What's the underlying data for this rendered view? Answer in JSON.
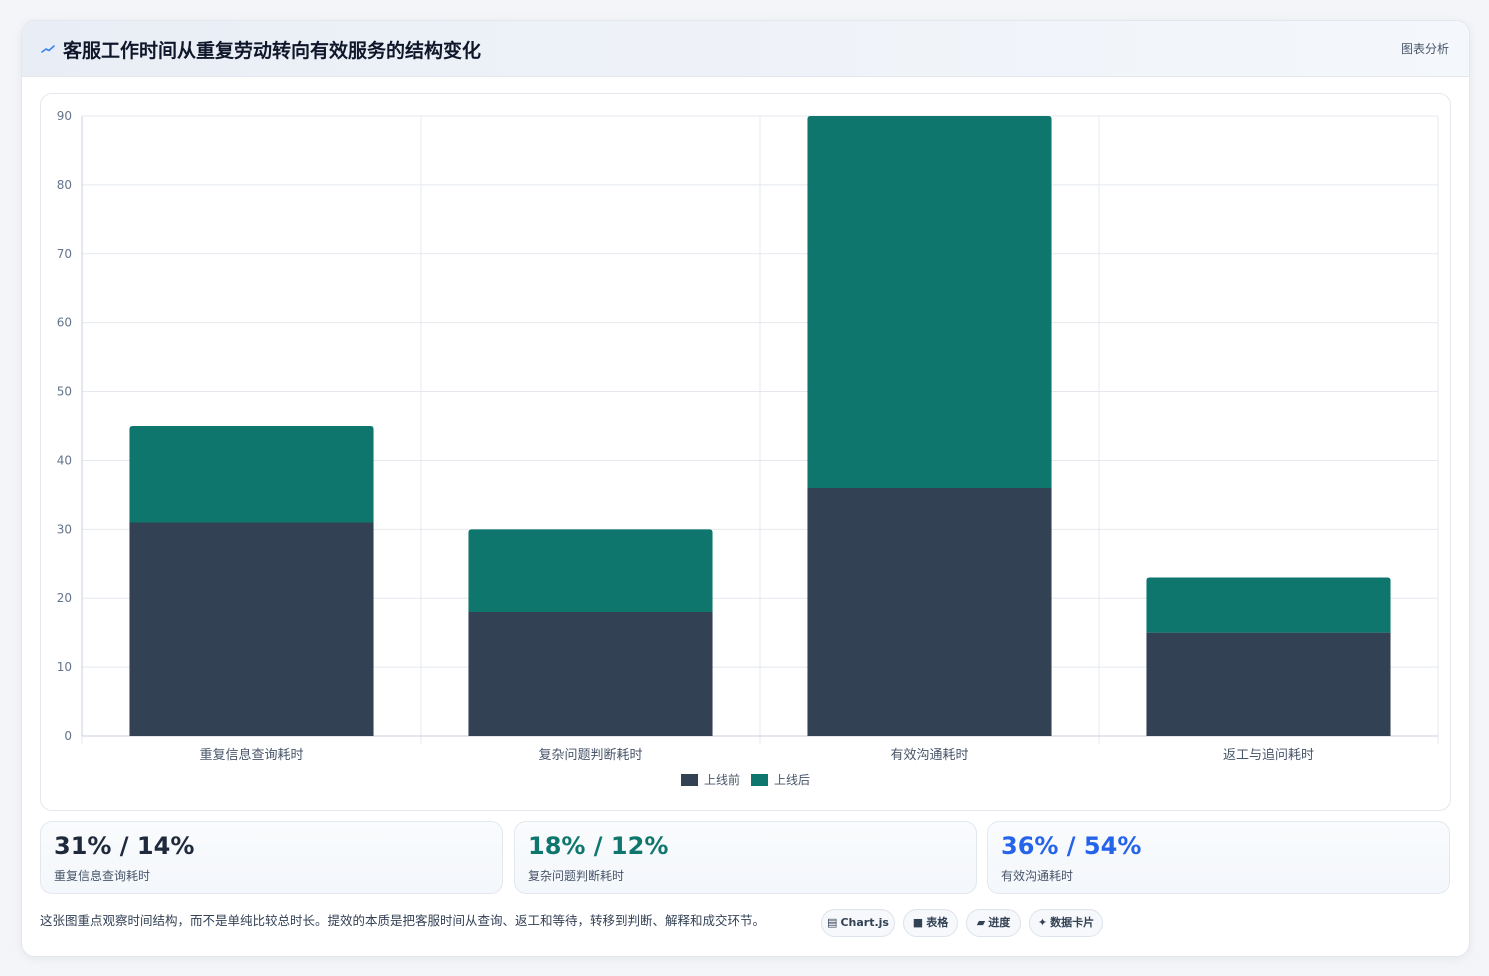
{
  "header": {
    "title": "客服工作时间从重复劳动转向有效服务的结构变化",
    "tag": "图表分析"
  },
  "chart_data": {
    "type": "bar",
    "stacked": true,
    "categories": [
      "重复信息查询耗时",
      "复杂问题判断耗时",
      "有效沟通耗时",
      "返工与追问耗时"
    ],
    "series": [
      {
        "name": "上线前",
        "values": [
          31,
          18,
          36,
          15
        ],
        "color": "#334155"
      },
      {
        "name": "上线后",
        "values": [
          14,
          12,
          54,
          8
        ],
        "color": "#0f766e"
      }
    ],
    "ylim": [
      0,
      90
    ],
    "yticks": [
      0,
      10,
      20,
      30,
      40,
      50,
      60,
      70,
      80,
      90
    ],
    "grid": true,
    "legend_position": "bottom"
  },
  "stats": [
    {
      "value": "31% / 14%",
      "label": "重复信息查询耗时",
      "color": "#1e293b"
    },
    {
      "value": "18% / 12%",
      "label": "复杂问题判断耗时",
      "color": "#0f766e"
    },
    {
      "value": "36% / 54%",
      "label": "有效沟通耗时",
      "color": "#2563eb"
    }
  ],
  "note": "这张图重点观察时间结构，而不是单纯比较总时长。提效的本质是把客服时间从查询、返工和等待，转移到判断、解释和成交环节。",
  "chips": [
    {
      "icon": "▤",
      "label": "Chart.js",
      "icon_name": "chart-icon"
    },
    {
      "icon": "■",
      "label": "表格",
      "icon_name": "table-icon"
    },
    {
      "icon": "▰",
      "label": "进度",
      "icon_name": "progress-icon"
    },
    {
      "icon": "✦",
      "label": "数据卡片",
      "icon_name": "card-icon"
    }
  ]
}
